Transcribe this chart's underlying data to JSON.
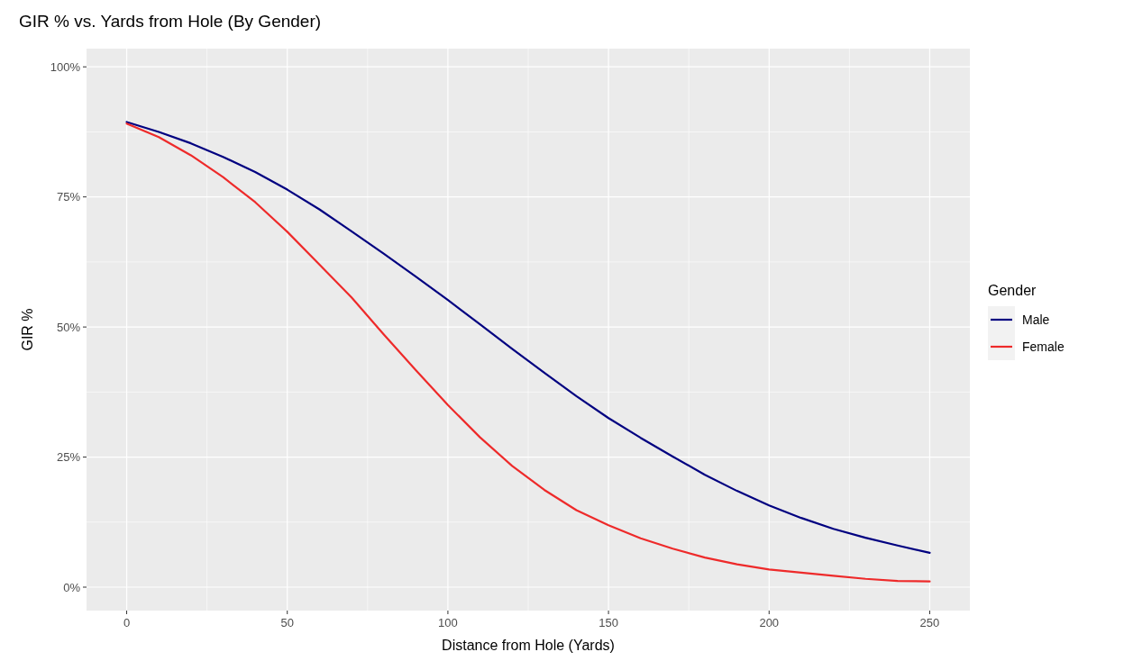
{
  "chart_data": {
    "type": "line",
    "title": "GIR % vs. Yards from Hole (By Gender)",
    "xlabel": "Distance from Hole (Yards)",
    "ylabel": "GIR %",
    "legend_title": "Gender",
    "x": [
      0,
      10,
      20,
      30,
      40,
      50,
      60,
      70,
      80,
      90,
      100,
      110,
      120,
      130,
      140,
      150,
      160,
      170,
      180,
      190,
      200,
      210,
      220,
      230,
      240,
      250
    ],
    "series": [
      {
        "name": "Male",
        "color": "#000080",
        "values": [
          89.4,
          87.5,
          85.3,
          82.7,
          79.8,
          76.4,
          72.6,
          68.4,
          64.1,
          59.7,
          55.2,
          50.5,
          45.8,
          41.2,
          36.7,
          32.5,
          28.7,
          25.1,
          21.6,
          18.5,
          15.7,
          13.3,
          11.2,
          9.5,
          8,
          6.6
        ]
      },
      {
        "name": "Female",
        "color": "#ee2a2a",
        "values": [
          89.1,
          86.5,
          83,
          78.8,
          74,
          68.3,
          62,
          55.7,
          48.6,
          41.7,
          35,
          28.8,
          23.3,
          18.7,
          14.8,
          11.9,
          9.4,
          7.4,
          5.7,
          4.4,
          3.4,
          2.8,
          2.2,
          1.6,
          1.2,
          1.1
        ]
      }
    ],
    "xlim": [
      -12.5,
      262.5
    ],
    "xticks": [
      0,
      50,
      100,
      150,
      200,
      250
    ],
    "ylim": [
      -4.5,
      103.5
    ],
    "yticks": [
      {
        "value": 0,
        "label": "0%"
      },
      {
        "value": 25,
        "label": "25%"
      },
      {
        "value": 50,
        "label": "50%"
      },
      {
        "value": 75,
        "label": "75%"
      },
      {
        "value": 100,
        "label": "100%"
      }
    ],
    "grid": true,
    "legend": "right",
    "line_style": "solid",
    "marker": "none"
  }
}
